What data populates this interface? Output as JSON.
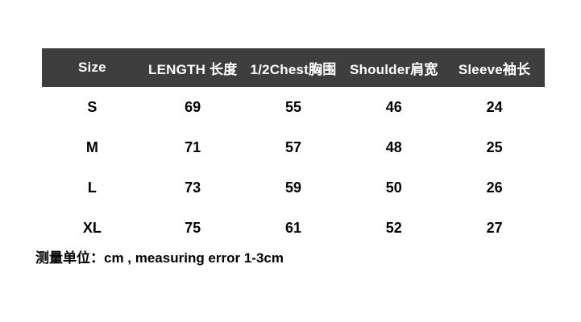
{
  "chart_data": {
    "type": "table",
    "columns": [
      "Size",
      "LENGTH 长度",
      "1/2Chest胸围",
      "Shoulder肩宽",
      "Sleeve袖长"
    ],
    "rows": [
      [
        "S",
        "69",
        "55",
        "46",
        "24"
      ],
      [
        "M",
        "71",
        "57",
        "48",
        "25"
      ],
      [
        "L",
        "73",
        "59",
        "50",
        "26"
      ],
      [
        "XL",
        "75",
        "61",
        "52",
        "27"
      ]
    ],
    "unit": "cm",
    "note": "测量单位：cm , measuring error 1-3cm"
  },
  "colors": {
    "header_bg": "#3e3e3e",
    "header_text": "#ffffff",
    "body_text": "#000000",
    "page_bg": "#ffffff"
  }
}
